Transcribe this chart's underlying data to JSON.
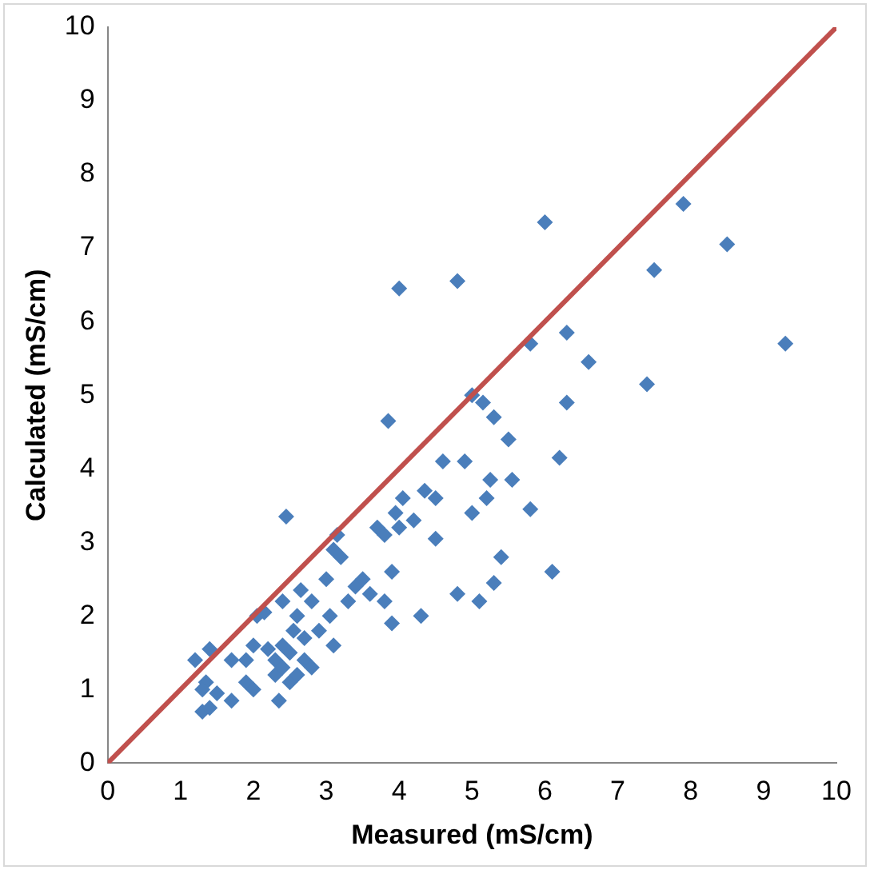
{
  "chart_data": {
    "type": "scatter",
    "xlabel": "Measured (mS/cm)",
    "ylabel": "Calculated (mS/cm)",
    "xlim": [
      0,
      10
    ],
    "ylim": [
      0,
      10
    ],
    "xticks": [
      0,
      1,
      2,
      3,
      4,
      5,
      6,
      7,
      8,
      9,
      10
    ],
    "yticks": [
      0,
      1,
      2,
      3,
      4,
      5,
      6,
      7,
      8,
      9,
      10
    ],
    "grid": false,
    "legend": false,
    "series": [
      {
        "type": "scatter",
        "color": "#4a7ebb",
        "marker": "diamond",
        "x": [
          1.2,
          1.3,
          1.4,
          1.35,
          1.4,
          1.5,
          1.3,
          1.7,
          1.7,
          1.9,
          2.0,
          1.9,
          2.0,
          2.05,
          2.15,
          2.2,
          2.3,
          2.3,
          2.35,
          2.4,
          2.4,
          2.4,
          2.45,
          2.5,
          2.5,
          2.55,
          2.6,
          2.6,
          2.65,
          2.7,
          2.7,
          2.8,
          2.8,
          2.9,
          3.0,
          3.05,
          3.1,
          3.1,
          3.15,
          3.2,
          3.3,
          3.4,
          3.5,
          3.6,
          3.7,
          3.8,
          3.8,
          3.85,
          3.9,
          3.9,
          3.95,
          4.0,
          4.0,
          4.05,
          4.2,
          4.3,
          4.35,
          4.5,
          4.5,
          4.6,
          4.8,
          4.8,
          4.9,
          5.0,
          5.0,
          5.1,
          5.15,
          5.2,
          5.25,
          5.3,
          5.3,
          5.4,
          5.5,
          5.55,
          5.8,
          5.8,
          6.0,
          6.1,
          6.2,
          6.3,
          6.3,
          6.6,
          7.4,
          7.5,
          7.9,
          8.5,
          9.3
        ],
        "values": [
          1.4,
          0.7,
          0.75,
          1.1,
          1.55,
          0.95,
          1.0,
          1.4,
          0.85,
          1.1,
          1.0,
          1.4,
          1.6,
          2.0,
          2.05,
          1.55,
          1.4,
          1.2,
          0.85,
          1.3,
          1.6,
          2.2,
          3.35,
          1.1,
          1.5,
          1.8,
          1.2,
          2.0,
          2.35,
          1.4,
          1.7,
          1.3,
          2.2,
          1.8,
          2.5,
          2.0,
          1.6,
          2.9,
          3.1,
          2.8,
          2.2,
          2.4,
          2.5,
          2.3,
          3.2,
          2.2,
          3.1,
          4.65,
          2.6,
          1.9,
          3.4,
          3.2,
          6.45,
          3.6,
          3.3,
          2.0,
          3.7,
          3.6,
          3.05,
          4.1,
          6.55,
          2.3,
          4.1,
          5.0,
          3.4,
          2.2,
          4.9,
          3.6,
          3.85,
          4.7,
          2.45,
          2.8,
          4.4,
          3.85,
          5.7,
          3.45,
          7.35,
          2.6,
          4.15,
          5.85,
          4.9,
          5.45,
          5.15,
          6.7,
          7.6,
          7.05,
          5.7
        ]
      },
      {
        "type": "line",
        "color": "#c0504d",
        "marker": "none",
        "line_style": "solid",
        "x": [
          0,
          10
        ],
        "values": [
          0,
          10
        ]
      }
    ]
  }
}
